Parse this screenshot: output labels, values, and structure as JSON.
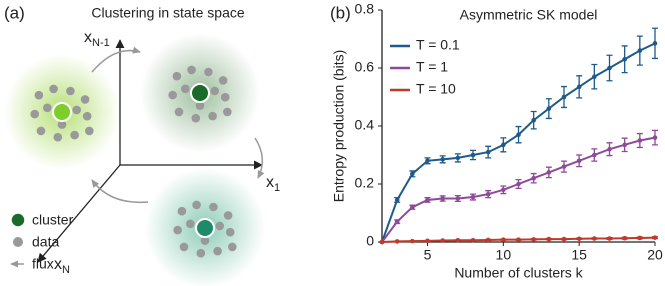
{
  "panel_labels": [
    "(a)",
    "(b)"
  ],
  "diagram": {
    "title": "Clustering in state space",
    "axes": [
      {
        "base": "x",
        "sub": "N-1"
      },
      {
        "base": "x",
        "sub": "1"
      },
      {
        "base": "x",
        "sub": "N"
      }
    ],
    "legend": [
      "cluster",
      "data",
      "flux"
    ]
  },
  "chart_data": {
    "type": "line",
    "title": "Asymmetric SK model",
    "x_label": "Number of clusters k",
    "y_label": "Entropy production (bits)",
    "x": [
      2,
      3,
      4,
      5,
      6,
      7,
      8,
      9,
      10,
      11,
      12,
      13,
      14,
      15,
      16,
      17,
      18,
      19,
      20
    ],
    "series": [
      {
        "name": "T = 0.1",
        "color": "#1f5a8c",
        "values": [
          0,
          0.145,
          0.235,
          0.28,
          0.285,
          0.29,
          0.3,
          0.31,
          0.335,
          0.37,
          0.42,
          0.46,
          0.5,
          0.535,
          0.57,
          0.6,
          0.63,
          0.66,
          0.685
        ],
        "errors": [
          0,
          0.008,
          0.01,
          0.01,
          0.012,
          0.014,
          0.016,
          0.02,
          0.024,
          0.028,
          0.03,
          0.034,
          0.036,
          0.038,
          0.042,
          0.044,
          0.046,
          0.05,
          0.052
        ]
      },
      {
        "name": "T = 1",
        "color": "#8e4a9a",
        "values": [
          0,
          0.07,
          0.12,
          0.145,
          0.15,
          0.15,
          0.155,
          0.165,
          0.18,
          0.2,
          0.22,
          0.24,
          0.26,
          0.28,
          0.3,
          0.32,
          0.335,
          0.35,
          0.36
        ],
        "errors": [
          0,
          0.006,
          0.007,
          0.008,
          0.009,
          0.01,
          0.01,
          0.012,
          0.013,
          0.015,
          0.016,
          0.018,
          0.019,
          0.02,
          0.021,
          0.022,
          0.023,
          0.024,
          0.025
        ]
      },
      {
        "name": "T = 10",
        "color": "#c0392b",
        "values": [
          0,
          0.002,
          0.003,
          0.004,
          0.005,
          0.006,
          0.006,
          0.007,
          0.008,
          0.008,
          0.009,
          0.01,
          0.01,
          0.011,
          0.012,
          0.012,
          0.013,
          0.014,
          0.015
        ],
        "errors": [
          0,
          0.001,
          0.001,
          0.001,
          0.001,
          0.001,
          0.001,
          0.002,
          0.002,
          0.002,
          0.002,
          0.002,
          0.002,
          0.002,
          0.002,
          0.003,
          0.003,
          0.003,
          0.003
        ]
      }
    ],
    "xlim": [
      2,
      20
    ],
    "xticks": [
      5,
      10,
      15,
      20
    ],
    "ylim": [
      0,
      0.8
    ],
    "yticks": [
      0,
      0.2,
      0.4,
      0.6,
      0.8
    ],
    "grid": false,
    "legend_position": "upper left"
  }
}
